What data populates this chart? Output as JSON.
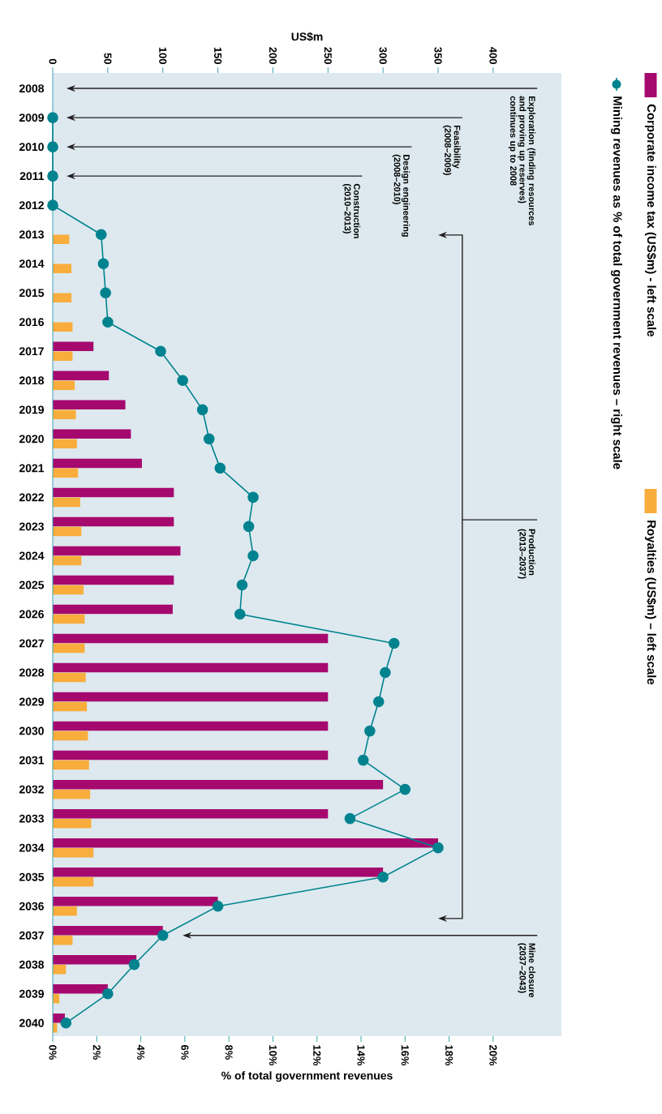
{
  "chart_data": {
    "type": "bar",
    "orientation": "horizontal",
    "legend": "right",
    "xlabel": "% of total government revenues",
    "x2label": "US$m",
    "categories": [
      "2008",
      "2009",
      "2010",
      "2011",
      "2012",
      "2013",
      "2014",
      "2015",
      "2016",
      "2017",
      "2018",
      "2019",
      "2020",
      "2021",
      "2022",
      "2023",
      "2024",
      "2025",
      "2026",
      "2027",
      "2028",
      "2029",
      "2030",
      "2031",
      "2032",
      "2033",
      "2034",
      "2035",
      "2036",
      "2037",
      "2038",
      "2039",
      "2040"
    ],
    "xlim": [
      0,
      23.1
    ],
    "xticks": [
      {
        "value": 0,
        "label": "0%"
      },
      {
        "value": 2,
        "label": "2%"
      },
      {
        "value": 4,
        "label": "4%"
      },
      {
        "value": 6,
        "label": "6%"
      },
      {
        "value": 8,
        "label": "8%"
      },
      {
        "value": 10,
        "label": "10%"
      },
      {
        "value": 12,
        "label": "12%"
      },
      {
        "value": 14,
        "label": "14%"
      },
      {
        "value": 16,
        "label": "16%"
      },
      {
        "value": 18,
        "label": "18%"
      },
      {
        "value": 20,
        "label": "20%"
      }
    ],
    "x2lim": [
      0,
      462
    ],
    "x2ticks": [
      0,
      50,
      100,
      150,
      200,
      250,
      300,
      350,
      400
    ],
    "series": [
      {
        "name": "Corporate income tax (US$m) - left scale",
        "axis": "x2",
        "color": "#a6096e",
        "values": [
          null,
          null,
          null,
          null,
          null,
          null,
          null,
          null,
          null,
          37,
          51,
          66,
          71,
          81,
          110,
          110,
          116,
          110,
          109,
          250,
          250,
          250,
          250,
          250,
          300,
          250,
          350,
          300,
          150,
          100,
          76,
          50,
          11
        ]
      },
      {
        "name": "Royalties (US$m) – left scale",
        "axis": "x2",
        "color": "#f9ad3c",
        "values": [
          null,
          null,
          null,
          null,
          null,
          15,
          17,
          17,
          18,
          18,
          20,
          21,
          22,
          23,
          25,
          26,
          26,
          28,
          29,
          29,
          30,
          31,
          32,
          33,
          34,
          35,
          37,
          37,
          22,
          18,
          12,
          6,
          4
        ]
      },
      {
        "name": "Mining revenues as % of total government revenues – right scale",
        "type": "line",
        "color": "#00838f",
        "marker": "circle",
        "line_style": "solid",
        "values": [
          null,
          0,
          0,
          0,
          0,
          2.2,
          2.3,
          2.4,
          2.5,
          4.9,
          5.9,
          6.8,
          7.1,
          7.6,
          9.1,
          8.9,
          9.1,
          8.6,
          8.5,
          15.5,
          15.1,
          14.8,
          14.4,
          14.1,
          16.0,
          13.5,
          17.5,
          15.0,
          7.5,
          5.0,
          3.7,
          2.5,
          0.6
        ]
      }
    ],
    "annotations": [
      "Exploration (finding resources and proving up reserves) continues up to 2008",
      "Feasibility (2008–2009)",
      "Design engineering (2008–2010)",
      "Construction (2010–2013)",
      "Production (2013–2037)",
      "Mine closure (2037–2043)"
    ]
  }
}
